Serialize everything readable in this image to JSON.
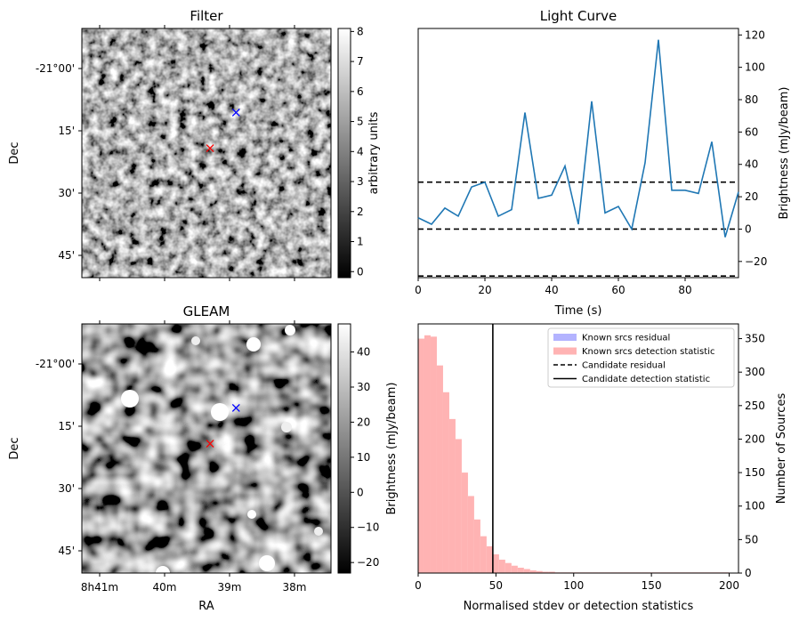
{
  "chart_data": [
    {
      "type": "heatmap",
      "title": "Filter",
      "ylabel": "Dec",
      "ytick_labels": [
        "-21°00'",
        "15'",
        "30'",
        "45'"
      ],
      "colorbar_label": "arbitrary units",
      "colorbar_range": [
        -0.2,
        8.1
      ],
      "colorbar_ticks": [
        0,
        1,
        2,
        3,
        4,
        5,
        6,
        7,
        8
      ],
      "colormap": "gray",
      "markers": [
        {
          "name": "blue-cross",
          "color": "#0000ff",
          "ra_min": 38.9,
          "dec_min": -10.6
        },
        {
          "name": "red-cross",
          "color": "#ff0000",
          "ra_min": 39.3,
          "dec_min": -19.2
        }
      ]
    },
    {
      "type": "line",
      "title": "Light Curve",
      "xlabel": "Time (s)",
      "ylabel": "Brightness (mJy/beam)",
      "xlim": [
        0,
        96
      ],
      "ylim": [
        -30,
        124
      ],
      "xticks": [
        0,
        20,
        40,
        60,
        80
      ],
      "yticks": [
        -20,
        0,
        20,
        40,
        60,
        80,
        100,
        120
      ],
      "line_color": "#1f77b4",
      "x": [
        0,
        4,
        8,
        12,
        16,
        20,
        24,
        28,
        32,
        36,
        40,
        44,
        48,
        52,
        56,
        60,
        64,
        68,
        72,
        76,
        80,
        84,
        88,
        92,
        96
      ],
      "y": [
        7,
        3,
        13,
        8,
        26,
        29,
        8,
        12,
        72,
        19,
        21,
        39,
        3,
        79,
        10,
        14,
        0,
        41,
        117,
        24,
        24,
        22,
        54,
        -5,
        23
      ],
      "hlines": [
        29,
        0,
        -29
      ]
    },
    {
      "type": "heatmap",
      "title": "GLEAM",
      "xlabel": "RA",
      "ylabel": "Dec",
      "xtick_labels": [
        "8h41m",
        "40m",
        "39m",
        "38m"
      ],
      "ytick_labels": [
        "-21°00'",
        "15'",
        "30'",
        "45'"
      ],
      "colorbar_label": "Brightness (mJy/beam)",
      "colorbar_range": [
        -23,
        48
      ],
      "colorbar_ticks": [
        -20,
        -10,
        0,
        10,
        20,
        30,
        40
      ],
      "colormap": "gray",
      "markers": [
        {
          "name": "blue-cross",
          "color": "#0000ff",
          "ra_min": 38.9,
          "dec_min": -10.6
        },
        {
          "name": "red-cross",
          "color": "#ff0000",
          "ra_min": 39.3,
          "dec_min": -19.2
        }
      ]
    },
    {
      "type": "bar",
      "subtype": "histogram",
      "xlabel": "Normalised stdev or detection statistics",
      "ylabel_left": "Brightness (mJy/beam)",
      "ylabel_right": "Number of Sources",
      "xlim": [
        0,
        206
      ],
      "ylim": [
        0,
        372
      ],
      "xticks": [
        0,
        50,
        100,
        150,
        200
      ],
      "yticks": [
        0,
        50,
        100,
        150,
        200,
        250,
        300,
        350
      ],
      "bin_width": 4,
      "bin_start": 0,
      "color": "#ffb3b3",
      "values": [
        350,
        355,
        353,
        310,
        270,
        230,
        200,
        150,
        115,
        80,
        55,
        40,
        28,
        20,
        15,
        11,
        8,
        6,
        4,
        3,
        2,
        2,
        1,
        1,
        1,
        1,
        1,
        1,
        1,
        1,
        1,
        1,
        1,
        1,
        1,
        1,
        1,
        1,
        1,
        1,
        1,
        1,
        1,
        1,
        1,
        1,
        1,
        1,
        1,
        1
      ],
      "candidate_detection_statistic": 48,
      "legend_position": "top-right",
      "legend": [
        {
          "label": "Known srcs residual",
          "style": "patch",
          "color": "#b3b3ff"
        },
        {
          "label": "Known srcs detection statistic",
          "style": "patch",
          "color": "#ffb3b3"
        },
        {
          "label": "Candidate residual",
          "style": "dashed",
          "color": "#000000"
        },
        {
          "label": "Candidate detection statistic",
          "style": "solid",
          "color": "#000000"
        }
      ]
    }
  ]
}
